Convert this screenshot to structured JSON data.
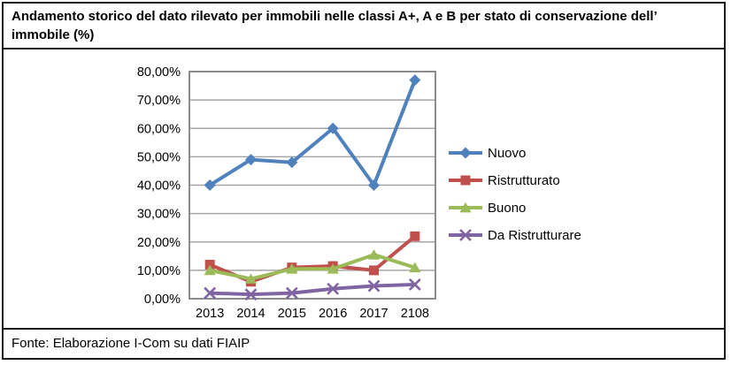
{
  "header": {
    "line1": "Andamento storico del dato rilevato per immobili nelle classi A+, A e B per stato di conservazione dell’",
    "line2": "immobile (%)"
  },
  "footer": "Fonte: Elaborazione I-Com su dati FIAIP",
  "chart_data": {
    "type": "line",
    "title": "Andamento storico del dato rilevato per immobili nelle classi A+, A e B per stato di conservazione dell’ immobile (%)",
    "categories": [
      "2013",
      "2014",
      "2015",
      "2016",
      "2017",
      "2108"
    ],
    "series": [
      {
        "name": "Nuovo",
        "color": "#4F81BD",
        "marker": "diamond",
        "values": [
          40,
          49,
          48,
          60,
          40,
          77
        ]
      },
      {
        "name": "Ristrutturato",
        "color": "#C0504D",
        "marker": "square",
        "values": [
          12,
          6,
          11,
          11.5,
          10,
          22
        ]
      },
      {
        "name": "Buono",
        "color": "#9BBB59",
        "marker": "triangle",
        "values": [
          10,
          7,
          10.5,
          10.5,
          15.5,
          11
        ]
      },
      {
        "name": "Da Ristrutturare",
        "color": "#8064A2",
        "marker": "x",
        "values": [
          2,
          1.5,
          2,
          3.5,
          4.5,
          5
        ]
      }
    ],
    "ylim": [
      0,
      80
    ],
    "ytick_step": 10,
    "ytick_labels": [
      "0,00%",
      "10,00%",
      "20,00%",
      "30,00%",
      "40,00%",
      "50,00%",
      "60,00%",
      "70,00%",
      "80,00%"
    ],
    "grid": true,
    "grid_color": "#A6A6A6",
    "axis_color": "#8C8C8C",
    "legend_position": "right"
  }
}
